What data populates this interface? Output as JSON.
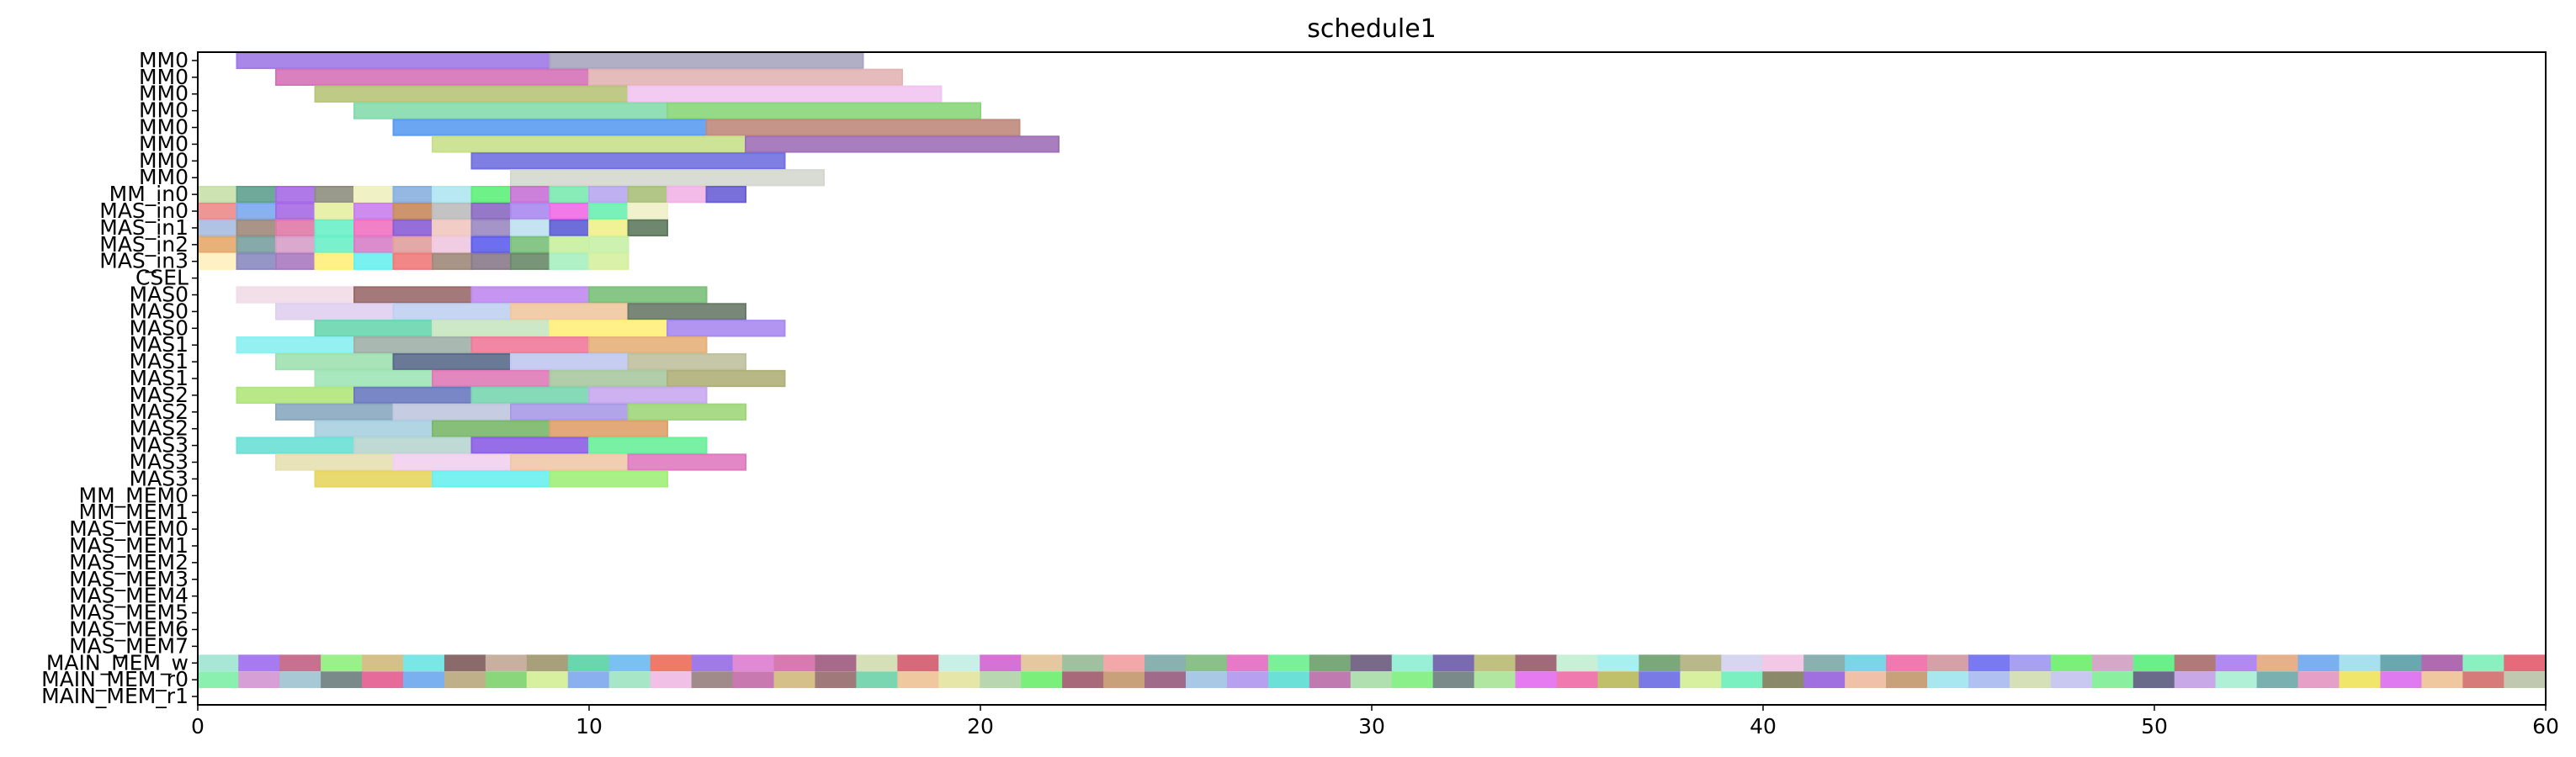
{
  "chart_data": {
    "type": "gantt",
    "title": "schedule1",
    "xlim": [
      0,
      60
    ],
    "x_ticks": [
      0,
      10,
      20,
      30,
      40,
      50,
      60
    ],
    "rows": [
      "MM0",
      "MM0",
      "MM0",
      "MM0",
      "MM0",
      "MM0",
      "MM0",
      "MM0",
      "MM_in0",
      "MAS_in0",
      "MAS_in1",
      "MAS_in2",
      "MAS_in3",
      "CSEL",
      "MAS0",
      "MAS0",
      "MAS0",
      "MAS1",
      "MAS1",
      "MAS1",
      "MAS2",
      "MAS2",
      "MAS2",
      "MAS3",
      "MAS3",
      "MAS3",
      "MM_MEM0",
      "MM_MEM1",
      "MAS_MEM0",
      "MAS_MEM1",
      "MAS_MEM2",
      "MAS_MEM3",
      "MAS_MEM4",
      "MAS_MEM5",
      "MAS_MEM6",
      "MAS_MEM7",
      "MAIN_MEM_w",
      "MAIN_MEM_r0",
      "MAIN_MEM_r1"
    ],
    "tasks": [
      {
        "row": 0,
        "start": 1,
        "end": 9,
        "color": "#a07ae6"
      },
      {
        "row": 0,
        "start": 9,
        "end": 17,
        "color": "#a8a6c0"
      },
      {
        "row": 1,
        "start": 2,
        "end": 10,
        "color": "#d672b8"
      },
      {
        "row": 1,
        "start": 10,
        "end": 18,
        "color": "#e2b4b4"
      },
      {
        "row": 2,
        "start": 3,
        "end": 11,
        "color": "#b8c47a"
      },
      {
        "row": 2,
        "start": 11,
        "end": 19,
        "color": "#f2c4f0"
      },
      {
        "row": 3,
        "start": 4,
        "end": 12,
        "color": "#86dcae"
      },
      {
        "row": 3,
        "start": 12,
        "end": 20,
        "color": "#8ad67a"
      },
      {
        "row": 4,
        "start": 5,
        "end": 13,
        "color": "#5a9cf0"
      },
      {
        "row": 4,
        "start": 13,
        "end": 21,
        "color": "#c08a7c"
      },
      {
        "row": 5,
        "start": 6,
        "end": 14,
        "color": "#c8e08a"
      },
      {
        "row": 5,
        "start": 14,
        "end": 22,
        "color": "#a070b8"
      },
      {
        "row": 6,
        "start": 7,
        "end": 15,
        "color": "#7070e0"
      },
      {
        "row": 7,
        "start": 8,
        "end": 16,
        "color": "#d4d8d0"
      },
      {
        "row": 8,
        "start": 0,
        "end": 1,
        "color": "#c8e0a8"
      },
      {
        "row": 8,
        "start": 1,
        "end": 2,
        "color": "#5ea08e"
      },
      {
        "row": 8,
        "start": 2,
        "end": 3,
        "color": "#a66ae6"
      },
      {
        "row": 8,
        "start": 3,
        "end": 4,
        "color": "#8e8e80"
      },
      {
        "row": 8,
        "start": 4,
        "end": 5,
        "color": "#f0f0c0"
      },
      {
        "row": 8,
        "start": 5,
        "end": 6,
        "color": "#8ab0e0"
      },
      {
        "row": 8,
        "start": 6,
        "end": 7,
        "color": "#b0e6f0"
      },
      {
        "row": 8,
        "start": 7,
        "end": 8,
        "color": "#5ef07a"
      },
      {
        "row": 8,
        "start": 8,
        "end": 9,
        "color": "#c872d6"
      },
      {
        "row": 8,
        "start": 9,
        "end": 10,
        "color": "#7aeab0"
      },
      {
        "row": 8,
        "start": 10,
        "end": 11,
        "color": "#b8a8f0"
      },
      {
        "row": 8,
        "start": 11,
        "end": 12,
        "color": "#a8c07a"
      },
      {
        "row": 8,
        "start": 12,
        "end": 13,
        "color": "#f2b4e6"
      },
      {
        "row": 8,
        "start": 13,
        "end": 14,
        "color": "#6a60d6"
      },
      {
        "row": 9,
        "start": 0,
        "end": 1,
        "color": "#ec8a8a"
      },
      {
        "row": 9,
        "start": 1,
        "end": 2,
        "color": "#7aa8f0"
      },
      {
        "row": 9,
        "start": 2,
        "end": 3,
        "color": "#a66ae6"
      },
      {
        "row": 9,
        "start": 3,
        "end": 4,
        "color": "#e6f0a0"
      },
      {
        "row": 9,
        "start": 4,
        "end": 5,
        "color": "#c880ec"
      },
      {
        "row": 9,
        "start": 5,
        "end": 6,
        "color": "#c88a5e"
      },
      {
        "row": 9,
        "start": 6,
        "end": 7,
        "color": "#bcbcbc"
      },
      {
        "row": 9,
        "start": 7,
        "end": 8,
        "color": "#8a6ac0"
      },
      {
        "row": 9,
        "start": 8,
        "end": 9,
        "color": "#a88af0"
      },
      {
        "row": 9,
        "start": 9,
        "end": 10,
        "color": "#f06ae6"
      },
      {
        "row": 9,
        "start": 10,
        "end": 11,
        "color": "#6af0b0"
      },
      {
        "row": 9,
        "start": 11,
        "end": 12,
        "color": "#f0f0c8"
      },
      {
        "row": 10,
        "start": 0,
        "end": 1,
        "color": "#a8bce0"
      },
      {
        "row": 10,
        "start": 1,
        "end": 2,
        "color": "#a08a7a"
      },
      {
        "row": 10,
        "start": 2,
        "end": 3,
        "color": "#e07aa8"
      },
      {
        "row": 10,
        "start": 3,
        "end": 4,
        "color": "#6af0c8"
      },
      {
        "row": 10,
        "start": 4,
        "end": 5,
        "color": "#f072c0"
      },
      {
        "row": 10,
        "start": 5,
        "end": 6,
        "color": "#8a5ed6"
      },
      {
        "row": 10,
        "start": 6,
        "end": 7,
        "color": "#f0c8c0"
      },
      {
        "row": 10,
        "start": 7,
        "end": 8,
        "color": "#9a8ac0"
      },
      {
        "row": 10,
        "start": 8,
        "end": 9,
        "color": "#c0e0f0"
      },
      {
        "row": 10,
        "start": 9,
        "end": 10,
        "color": "#5e5ed6"
      },
      {
        "row": 10,
        "start": 10,
        "end": 11,
        "color": "#f0f08a"
      },
      {
        "row": 10,
        "start": 11,
        "end": 12,
        "color": "#5e7a5e"
      },
      {
        "row": 11,
        "start": 0,
        "end": 1,
        "color": "#e6a86a"
      },
      {
        "row": 11,
        "start": 1,
        "end": 2,
        "color": "#7aa0a0"
      },
      {
        "row": 11,
        "start": 2,
        "end": 3,
        "color": "#d6a0c8"
      },
      {
        "row": 11,
        "start": 3,
        "end": 4,
        "color": "#6af0c8"
      },
      {
        "row": 11,
        "start": 4,
        "end": 5,
        "color": "#d680c8"
      },
      {
        "row": 11,
        "start": 5,
        "end": 6,
        "color": "#e0a0a0"
      },
      {
        "row": 11,
        "start": 6,
        "end": 7,
        "color": "#f0c8e0"
      },
      {
        "row": 11,
        "start": 7,
        "end": 8,
        "color": "#5e5ef0"
      },
      {
        "row": 11,
        "start": 8,
        "end": 9,
        "color": "#7ac07a"
      },
      {
        "row": 11,
        "start": 9,
        "end": 10,
        "color": "#c8f0a0"
      },
      {
        "row": 11,
        "start": 10,
        "end": 11,
        "color": "#c8f0a8"
      },
      {
        "row": 12,
        "start": 0,
        "end": 1,
        "color": "#fff0c0"
      },
      {
        "row": 12,
        "start": 1,
        "end": 2,
        "color": "#8a8ac0"
      },
      {
        "row": 12,
        "start": 2,
        "end": 3,
        "color": "#a87ac0"
      },
      {
        "row": 12,
        "start": 3,
        "end": 4,
        "color": "#fff07a"
      },
      {
        "row": 12,
        "start": 4,
        "end": 5,
        "color": "#6af0f0"
      },
      {
        "row": 12,
        "start": 5,
        "end": 6,
        "color": "#f07a7a"
      },
      {
        "row": 12,
        "start": 6,
        "end": 7,
        "color": "#a08a7a"
      },
      {
        "row": 12,
        "start": 7,
        "end": 8,
        "color": "#8a7a8a"
      },
      {
        "row": 12,
        "start": 8,
        "end": 9,
        "color": "#6a8a6a"
      },
      {
        "row": 12,
        "start": 9,
        "end": 10,
        "color": "#a8f0c0"
      },
      {
        "row": 12,
        "start": 10,
        "end": 11,
        "color": "#d6f0a0"
      },
      {
        "row": 14,
        "start": 1,
        "end": 4,
        "color": "#f2dce6"
      },
      {
        "row": 14,
        "start": 4,
        "end": 7,
        "color": "#9a6a6a"
      },
      {
        "row": 14,
        "start": 7,
        "end": 10,
        "color": "#c08af0"
      },
      {
        "row": 14,
        "start": 10,
        "end": 13,
        "color": "#7ac07a"
      },
      {
        "row": 15,
        "start": 2,
        "end": 5,
        "color": "#e0d0f0"
      },
      {
        "row": 15,
        "start": 5,
        "end": 8,
        "color": "#c0d0f0"
      },
      {
        "row": 15,
        "start": 8,
        "end": 11,
        "color": "#f0c8a0"
      },
      {
        "row": 15,
        "start": 11,
        "end": 14,
        "color": "#6a7a6a"
      },
      {
        "row": 16,
        "start": 3,
        "end": 6,
        "color": "#6ad6b0"
      },
      {
        "row": 16,
        "start": 6,
        "end": 9,
        "color": "#c8e6c0"
      },
      {
        "row": 16,
        "start": 9,
        "end": 12,
        "color": "#fff07a"
      },
      {
        "row": 16,
        "start": 12,
        "end": 15,
        "color": "#a88af0"
      },
      {
        "row": 17,
        "start": 1,
        "end": 4,
        "color": "#8af0f0"
      },
      {
        "row": 17,
        "start": 4,
        "end": 7,
        "color": "#a0b0a8"
      },
      {
        "row": 17,
        "start": 7,
        "end": 10,
        "color": "#f07a9a"
      },
      {
        "row": 17,
        "start": 10,
        "end": 13,
        "color": "#e6b07a"
      },
      {
        "row": 18,
        "start": 2,
        "end": 5,
        "color": "#a0e0b0"
      },
      {
        "row": 18,
        "start": 5,
        "end": 8,
        "color": "#5a6a8a"
      },
      {
        "row": 18,
        "start": 8,
        "end": 11,
        "color": "#c0c8f0"
      },
      {
        "row": 18,
        "start": 11,
        "end": 14,
        "color": "#c0c0a0"
      },
      {
        "row": 19,
        "start": 3,
        "end": 6,
        "color": "#a0e6b8"
      },
      {
        "row": 19,
        "start": 6,
        "end": 9,
        "color": "#e07ab8"
      },
      {
        "row": 19,
        "start": 9,
        "end": 12,
        "color": "#a8c8a0"
      },
      {
        "row": 19,
        "start": 12,
        "end": 15,
        "color": "#b0b07a"
      },
      {
        "row": 20,
        "start": 1,
        "end": 4,
        "color": "#b0e67a"
      },
      {
        "row": 20,
        "start": 4,
        "end": 7,
        "color": "#6a7ac0"
      },
      {
        "row": 20,
        "start": 7,
        "end": 10,
        "color": "#7ad6b0"
      },
      {
        "row": 20,
        "start": 10,
        "end": 13,
        "color": "#c8a8f0"
      },
      {
        "row": 21,
        "start": 2,
        "end": 5,
        "color": "#8aa8c0"
      },
      {
        "row": 21,
        "start": 5,
        "end": 8,
        "color": "#c0c8e0"
      },
      {
        "row": 21,
        "start": 8,
        "end": 11,
        "color": "#a89ae6"
      },
      {
        "row": 21,
        "start": 11,
        "end": 14,
        "color": "#a0d67a"
      },
      {
        "row": 22,
        "start": 3,
        "end": 6,
        "color": "#a8d0e0"
      },
      {
        "row": 22,
        "start": 6,
        "end": 9,
        "color": "#7ab86a"
      },
      {
        "row": 22,
        "start": 9,
        "end": 12,
        "color": "#e0a06a"
      },
      {
        "row": 23,
        "start": 1,
        "end": 4,
        "color": "#6ae0d6"
      },
      {
        "row": 23,
        "start": 4,
        "end": 7,
        "color": "#b8d6d0"
      },
      {
        "row": 23,
        "start": 7,
        "end": 10,
        "color": "#8a5ee6"
      },
      {
        "row": 23,
        "start": 10,
        "end": 13,
        "color": "#6af09a"
      },
      {
        "row": 24,
        "start": 2,
        "end": 5,
        "color": "#e6e0b0"
      },
      {
        "row": 24,
        "start": 5,
        "end": 8,
        "color": "#f2d0f0"
      },
      {
        "row": 24,
        "start": 8,
        "end": 11,
        "color": "#f0c8a8"
      },
      {
        "row": 24,
        "start": 11,
        "end": 14,
        "color": "#e07ac0"
      },
      {
        "row": 25,
        "start": 3,
        "end": 6,
        "color": "#e6d65e"
      },
      {
        "row": 25,
        "start": 6,
        "end": 9,
        "color": "#6af0f0"
      },
      {
        "row": 25,
        "start": 9,
        "end": 12,
        "color": "#a0f07a"
      },
      {
        "row": 36,
        "start": 0,
        "end": 60,
        "colors": [
          "#a8e6d6",
          "#a87af0",
          "#c87090",
          "#9af08a",
          "#d6c08a",
          "#7ae6e6",
          "#8a6a6a",
          "#c8b0a0",
          "#a8a07a",
          "#6ad6b0",
          "#7ac0f0",
          "#f07a6a",
          "#a07ae6",
          "#e08ad6",
          "#d67ab0",
          "#a86a8a",
          "#d6e0b8",
          "#d66a7a",
          "#c8f0e6",
          "#d672d6",
          "#e6c8a0",
          "#a0c0a0",
          "#f2a8a8",
          "#8ab0b0",
          "#8ac08a",
          "#e67ac8",
          "#7af09a",
          "#7aa87a",
          "#7a6a8a",
          "#9af0d6",
          "#7a6ab0",
          "#c0c080",
          "#a06a7a",
          "#c8f0d6",
          "#a8f0f0",
          "#7aa87a",
          "#b8b88a",
          "#d6d6f0",
          "#f2c8e6",
          "#8ab0b0",
          "#7ad6e6",
          "#f07ab0",
          "#d6a0a8",
          "#7a7af0",
          "#a8a0f0",
          "#7af07a",
          "#d6a8c8",
          "#6af08a",
          "#b07a7a",
          "#b08af0",
          "#e6b08a",
          "#7ab0f0",
          "#a8e0f0",
          "#6aa8b0",
          "#b06ab0",
          "#8af0c0",
          "#e66a7a"
        ]
      },
      {
        "row": 37,
        "start": 0,
        "end": 60,
        "colors": [
          "#8af0b0",
          "#d6a0d6",
          "#a8c8d6",
          "#7a8a8a",
          "#e66a9a",
          "#7ab0f0",
          "#c0b08a",
          "#8ad67a",
          "#d6f0a0",
          "#8ab0f0",
          "#a8e6c8",
          "#f0c0e6",
          "#a08a8a",
          "#c87ab0",
          "#d6c08a",
          "#a07a7a",
          "#7ad6b0",
          "#f0c8a0",
          "#e6e6a8",
          "#b8d6b0",
          "#7af07a",
          "#a86a7a",
          "#c8a07a",
          "#a06a8a",
          "#a8c8e6",
          "#b8a0f0",
          "#6ae0d6",
          "#c07ab0",
          "#b0e0b0",
          "#8af08a",
          "#7a8a8a",
          "#b0e6a0",
          "#e67af0",
          "#f07ab0",
          "#c0c06a",
          "#7a7ae6",
          "#d6f0a0",
          "#7af0c0",
          "#8a8a6a",
          "#a070e0",
          "#f0c0a8",
          "#c8a07a",
          "#a8e6f0",
          "#b0c0f0",
          "#d6e0b8",
          "#c8c8f0",
          "#8af0a0",
          "#6a6a8a",
          "#c8a8e6",
          "#b0f0d6",
          "#7ab0b0",
          "#e6a0c8",
          "#f0e66a",
          "#e07af0",
          "#f0c8a0",
          "#d67a7a",
          "#c0c8b0"
        ]
      }
    ]
  }
}
